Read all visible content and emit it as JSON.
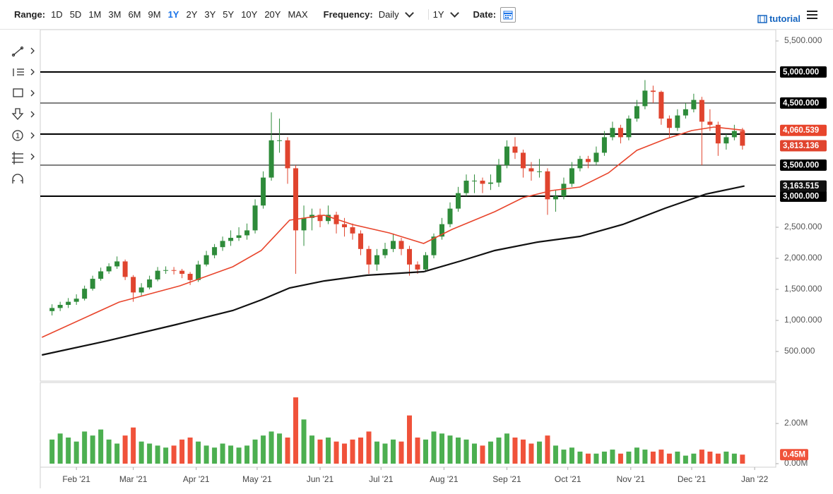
{
  "toolbar": {
    "range_label": "Range:",
    "ranges": [
      "1D",
      "5D",
      "1M",
      "3M",
      "6M",
      "9M",
      "1Y",
      "2Y",
      "3Y",
      "5Y",
      "10Y",
      "20Y",
      "MAX"
    ],
    "active_range": "1Y",
    "frequency_label": "Frequency:",
    "frequency": "Daily",
    "period": "1Y",
    "date_label": "Date:",
    "tutorial": "tutorial"
  },
  "chart_data": {
    "type": "candlestick",
    "xlim": [
      13.2,
      375.4
    ],
    "ylim": [
      23,
      5682
    ],
    "xticks": [
      {
        "value": 31,
        "label": "Feb '21"
      },
      {
        "value": 59,
        "label": "Mar '21"
      },
      {
        "value": 90,
        "label": "Apr '21"
      },
      {
        "value": 120,
        "label": "May '21"
      },
      {
        "value": 151,
        "label": "Jun '21"
      },
      {
        "value": 181,
        "label": "Jul '21"
      },
      {
        "value": 212,
        "label": "Aug '21"
      },
      {
        "value": 243,
        "label": "Sep '21"
      },
      {
        "value": 273,
        "label": "Oct '21"
      },
      {
        "value": 304,
        "label": "Nov '21"
      },
      {
        "value": 334,
        "label": "Dec '21"
      },
      {
        "value": 365,
        "label": "Jan '22"
      }
    ],
    "yticks": [
      {
        "value": 5500,
        "label": "5,500.000"
      },
      {
        "value": 2500,
        "label": "2,500.000"
      },
      {
        "value": 2000,
        "label": "2,000.000"
      },
      {
        "value": 1500,
        "label": "1,500.000"
      },
      {
        "value": 1000,
        "label": "1,000.000"
      },
      {
        "value": 500,
        "label": "500.000"
      }
    ],
    "levels": [
      {
        "value": 5000,
        "label": "5,000.000",
        "width": 2
      },
      {
        "value": 4500,
        "label": "4,500.000",
        "width": 1
      },
      {
        "value": 4000,
        "width": 2
      },
      {
        "value": 3500,
        "label": "3,500.000",
        "width": 1
      },
      {
        "value": 3000,
        "label": "3,000.000",
        "width": 2
      }
    ],
    "candles": {
      "up_color": "#2e8b3a",
      "down_color": "#e0442e",
      "close_label": "3,813.136",
      "x": [
        19,
        23,
        27,
        31,
        35,
        39,
        43,
        47,
        51,
        55,
        59,
        63,
        67,
        71,
        75,
        79,
        83,
        87,
        91,
        95,
        99,
        103,
        107,
        111,
        115,
        119,
        123,
        127,
        131,
        135,
        139,
        143,
        147,
        151,
        155,
        159,
        163,
        167,
        171,
        175,
        179,
        183,
        187,
        191,
        195,
        199,
        203,
        207,
        211,
        215,
        219,
        223,
        227,
        231,
        235,
        239,
        243,
        247,
        251,
        255,
        259,
        263,
        267,
        271,
        275,
        279,
        283,
        287,
        291,
        295,
        299,
        303,
        307,
        311,
        315,
        319,
        323,
        327,
        331,
        335,
        339,
        343,
        347,
        351,
        355,
        359
      ],
      "open": [
        1150,
        1200,
        1250,
        1300,
        1350,
        1510,
        1670,
        1790,
        1870,
        1950,
        1700,
        1450,
        1530,
        1660,
        1800,
        1810,
        1800,
        1750,
        1650,
        1900,
        2050,
        2180,
        2280,
        2330,
        2370,
        2450,
        2850,
        3300,
        3900,
        3900,
        3450,
        2450,
        2650,
        2700,
        2600,
        2700,
        2550,
        2500,
        2400,
        2150,
        1900,
        2050,
        2150,
        2280,
        2150,
        1900,
        1820,
        2050,
        2350,
        2550,
        2800,
        3050,
        3250,
        3250,
        3200,
        3220,
        3500,
        3800,
        3700,
        3450,
        3400,
        3400,
        2950,
        3000,
        3200,
        3450,
        3600,
        3550,
        3700,
        3950,
        4100,
        3950,
        4250,
        4450,
        4700,
        4680,
        4250,
        4100,
        4300,
        4400,
        4550,
        4200,
        4150,
        3850,
        3950,
        4050
      ],
      "high": [
        1260,
        1300,
        1360,
        1420,
        1560,
        1720,
        1850,
        1920,
        2030,
        1980,
        1730,
        1600,
        1720,
        1860,
        1870,
        1860,
        1830,
        1780,
        1960,
        2120,
        2230,
        2350,
        2450,
        2500,
        2560,
        2950,
        3400,
        4350,
        4250,
        3950,
        3500,
        2850,
        2800,
        2800,
        2850,
        2750,
        2650,
        2560,
        2450,
        2200,
        2150,
        2250,
        2400,
        2330,
        2200,
        1950,
        2100,
        2400,
        2650,
        2900,
        3150,
        3350,
        3350,
        3300,
        3350,
        3600,
        3900,
        3950,
        3750,
        3550,
        3600,
        3450,
        3100,
        3300,
        3550,
        3650,
        3650,
        3800,
        4050,
        4200,
        4150,
        4300,
        4550,
        4870,
        4780,
        4700,
        4300,
        4400,
        4500,
        4650,
        4600,
        4400,
        4200,
        4000,
        4150,
        4100
      ],
      "low": [
        1080,
        1150,
        1200,
        1250,
        1320,
        1480,
        1640,
        1750,
        1830,
        1650,
        1300,
        1400,
        1500,
        1630,
        1750,
        1740,
        1680,
        1570,
        1620,
        1870,
        2000,
        2120,
        2200,
        2280,
        2300,
        2400,
        2800,
        3250,
        3700,
        3200,
        1750,
        2200,
        2450,
        2500,
        2550,
        2400,
        2350,
        2300,
        2050,
        1750,
        1800,
        2000,
        2100,
        2050,
        1720,
        1750,
        1780,
        2000,
        2300,
        2500,
        2750,
        3000,
        3050,
        3050,
        3100,
        3150,
        3450,
        3600,
        3300,
        3250,
        3300,
        2700,
        2750,
        2950,
        3150,
        3400,
        3450,
        3500,
        3650,
        3900,
        3850,
        3900,
        4200,
        4400,
        4500,
        4150,
        3950,
        4050,
        4250,
        4350,
        3500,
        4050,
        3650,
        3750,
        3900,
        3750
      ],
      "close": [
        1200,
        1250,
        1300,
        1350,
        1510,
        1670,
        1790,
        1870,
        1950,
        1700,
        1450,
        1530,
        1660,
        1800,
        1810,
        1800,
        1750,
        1650,
        1900,
        2050,
        2180,
        2280,
        2330,
        2370,
        2450,
        2850,
        3300,
        3900,
        3900,
        3450,
        2450,
        2650,
        2700,
        2600,
        2700,
        2550,
        2500,
        2400,
        2150,
        1900,
        2050,
        2150,
        2280,
        2150,
        1900,
        1820,
        2050,
        2350,
        2550,
        2800,
        3050,
        3250,
        3250,
        3200,
        3220,
        3500,
        3800,
        3700,
        3450,
        3400,
        3400,
        2950,
        3000,
        3200,
        3450,
        3600,
        3550,
        3700,
        3950,
        4100,
        3950,
        4250,
        4450,
        4700,
        4680,
        4250,
        4100,
        4300,
        4400,
        4550,
        4200,
        4150,
        3850,
        3950,
        4050,
        3813.136
      ]
    },
    "moving_averages": [
      {
        "color": "#e8452c",
        "last_label": "4,060.539",
        "x": [
          14,
          52,
          82,
          108,
          122,
          136,
          153,
          167,
          185,
          202,
          216,
          237,
          251,
          265,
          279,
          293,
          307,
          321,
          334,
          345,
          360
        ],
        "values": [
          727,
          1295,
          1557,
          1864,
          2125,
          2614,
          2693,
          2545,
          2409,
          2239,
          2466,
          2750,
          2977,
          3091,
          3148,
          3375,
          3739,
          3920,
          4057,
          4114,
          4060.539
        ]
      },
      {
        "color": "#111111",
        "last_label": "3,163.515",
        "x": [
          14,
          46,
          80,
          108,
          122,
          136,
          153,
          174,
          202,
          220,
          237,
          258,
          279,
          300,
          321,
          341,
          360
        ],
        "values": [
          443,
          670,
          932,
          1159,
          1330,
          1523,
          1636,
          1727,
          1784,
          1955,
          2125,
          2261,
          2352,
          2545,
          2807,
          3034,
          3163.515
        ]
      }
    ],
    "volume": {
      "ylim": [
        0,
        4.04
      ],
      "up_color": "#4caf50",
      "down_color": "#f0523a",
      "last_label": "0.45M",
      "yticks": [
        {
          "value": 2,
          "label": "2.00M"
        },
        {
          "value": 0,
          "label": "0.00M"
        }
      ],
      "values": [
        1.2,
        1.5,
        1.3,
        1.1,
        1.6,
        1.4,
        1.7,
        1.2,
        1.0,
        1.4,
        1.8,
        1.1,
        1.0,
        0.9,
        0.8,
        0.9,
        1.2,
        1.3,
        1.1,
        0.9,
        0.8,
        1.0,
        0.9,
        0.8,
        0.9,
        1.2,
        1.4,
        1.6,
        1.5,
        1.3,
        3.3,
        2.2,
        1.4,
        1.2,
        1.3,
        1.1,
        1.0,
        1.2,
        1.3,
        1.6,
        1.1,
        1.0,
        1.2,
        1.1,
        2.4,
        1.3,
        1.2,
        1.6,
        1.5,
        1.4,
        1.3,
        1.2,
        1.0,
        0.9,
        1.1,
        1.3,
        1.5,
        1.3,
        1.2,
        1.0,
        1.1,
        1.4,
        0.9,
        0.7,
        0.8,
        0.6,
        0.5,
        0.5,
        0.6,
        0.7,
        0.5,
        0.6,
        0.8,
        0.7,
        0.6,
        0.7,
        0.5,
        0.6,
        0.4,
        0.5,
        0.7,
        0.6,
        0.5,
        0.6,
        0.5,
        0.45
      ]
    }
  }
}
